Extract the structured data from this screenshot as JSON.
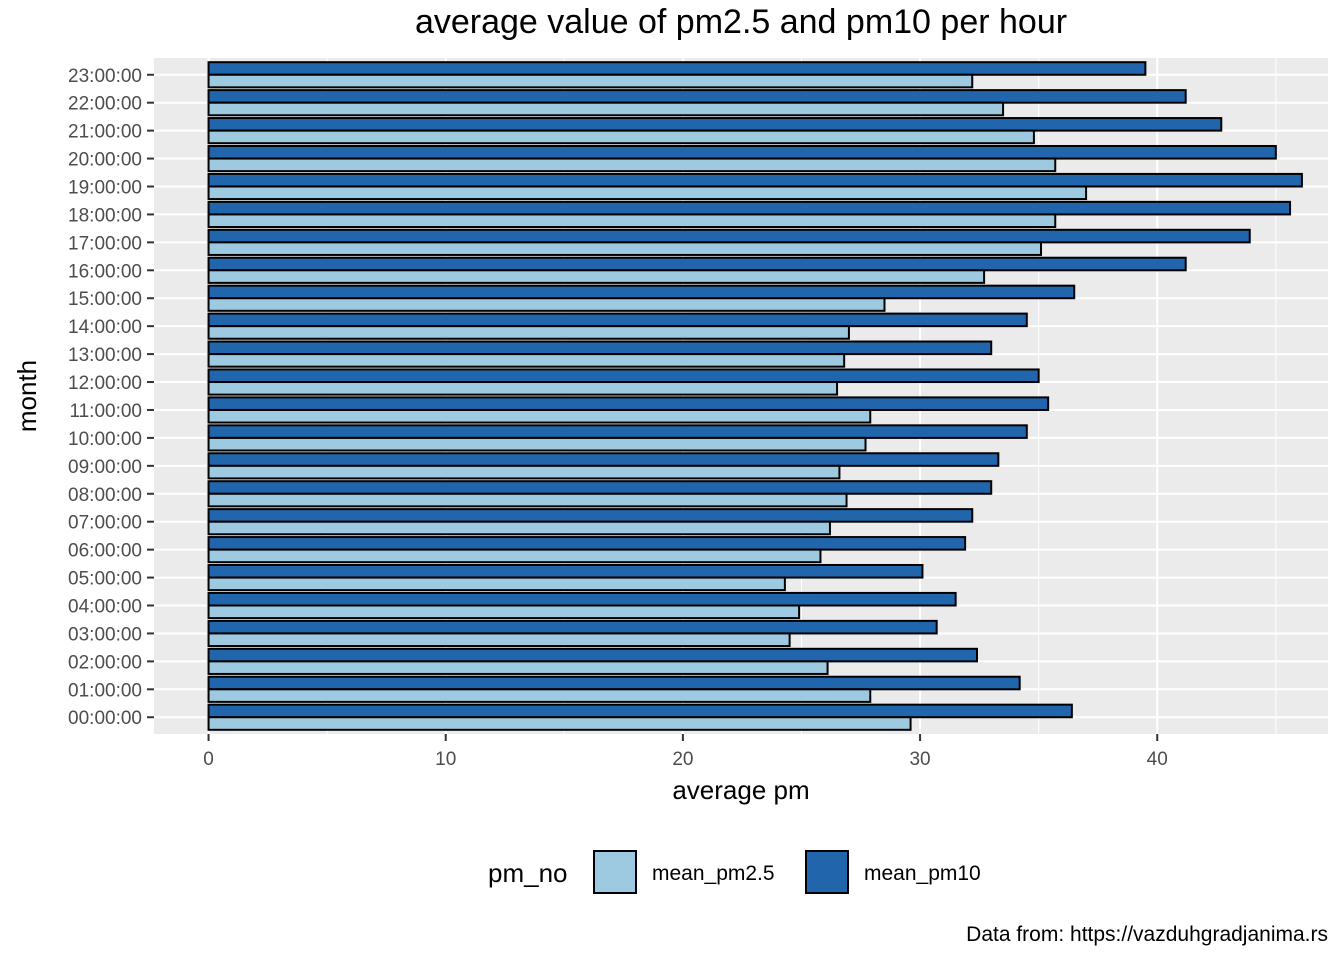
{
  "chart_data": {
    "type": "bar",
    "orientation": "horizontal",
    "title": "average value of pm2.5 and pm10 per hour",
    "xlabel": "average pm",
    "ylabel": "month",
    "xlim": [
      -2.3,
      47.2
    ],
    "xticks": [
      0,
      10,
      20,
      30,
      40
    ],
    "grid": true,
    "legend_position": "bottom",
    "legend_title": "pm_no",
    "caption": "Data from: https://vazduhgradjanima.rs",
    "categories": [
      "00:00:00",
      "01:00:00",
      "02:00:00",
      "03:00:00",
      "04:00:00",
      "05:00:00",
      "06:00:00",
      "07:00:00",
      "08:00:00",
      "09:00:00",
      "10:00:00",
      "11:00:00",
      "12:00:00",
      "13:00:00",
      "14:00:00",
      "15:00:00",
      "16:00:00",
      "17:00:00",
      "18:00:00",
      "19:00:00",
      "20:00:00",
      "21:00:00",
      "22:00:00",
      "23:00:00"
    ],
    "series": [
      {
        "name": "mean_pm2.5",
        "color": "#9ecae1",
        "values": [
          29.6,
          27.9,
          26.1,
          24.5,
          24.9,
          24.3,
          25.8,
          26.2,
          26.9,
          26.6,
          27.7,
          27.9,
          26.5,
          26.8,
          27.0,
          28.5,
          32.7,
          35.1,
          35.7,
          37.0,
          35.7,
          34.8,
          33.5,
          32.2
        ]
      },
      {
        "name": "mean_pm10",
        "color": "#2166ac",
        "values": [
          36.4,
          34.2,
          32.4,
          30.7,
          31.5,
          30.1,
          31.9,
          32.2,
          33.0,
          33.3,
          34.5,
          35.4,
          35.0,
          33.0,
          34.5,
          36.5,
          41.2,
          43.9,
          45.6,
          46.1,
          45.0,
          42.7,
          41.2,
          39.5
        ]
      }
    ]
  }
}
